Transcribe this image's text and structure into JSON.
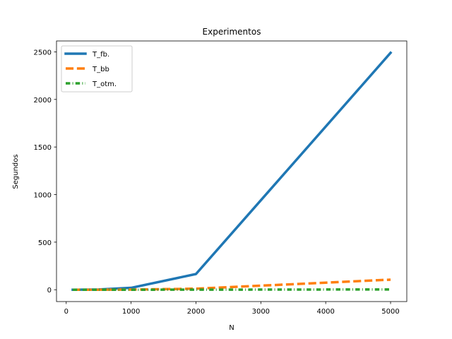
{
  "chart_data": {
    "type": "line",
    "title": "Experimentos",
    "xlabel": "N",
    "ylabel": "Segundos",
    "xlim": [
      -150,
      5250
    ],
    "ylim": [
      -124.5,
      2614.5
    ],
    "xticks": [
      0,
      1000,
      2000,
      3000,
      4000,
      5000
    ],
    "yticks": [
      0,
      500,
      1000,
      1500,
      2000,
      2500
    ],
    "xtick_labels": [
      "0",
      "1000",
      "2000",
      "3000",
      "4000",
      "5000"
    ],
    "ytick_labels": [
      "0",
      "500",
      "1000",
      "1500",
      "2000",
      "2500"
    ],
    "grid": false,
    "legend_position": "upper left",
    "series": [
      {
        "name": "T_fb.",
        "color": "#1f77b4",
        "style": "solid",
        "x": [
          100,
          500,
          1000,
          2000,
          5000
        ],
        "y": [
          0.1,
          2.5,
          20,
          165,
          2490
        ]
      },
      {
        "name": "T_bb",
        "color": "#ff7f0e",
        "style": "dashed",
        "x": [
          100,
          500,
          1000,
          2000,
          5000
        ],
        "y": [
          0,
          0.2,
          1.5,
          11,
          106
        ]
      },
      {
        "name": "T_otm.",
        "color": "#2ca02c",
        "style": "dashdot",
        "x": [
          100,
          500,
          1000,
          2000,
          5000
        ],
        "y": [
          0,
          0,
          0.1,
          0.5,
          3
        ]
      }
    ]
  }
}
